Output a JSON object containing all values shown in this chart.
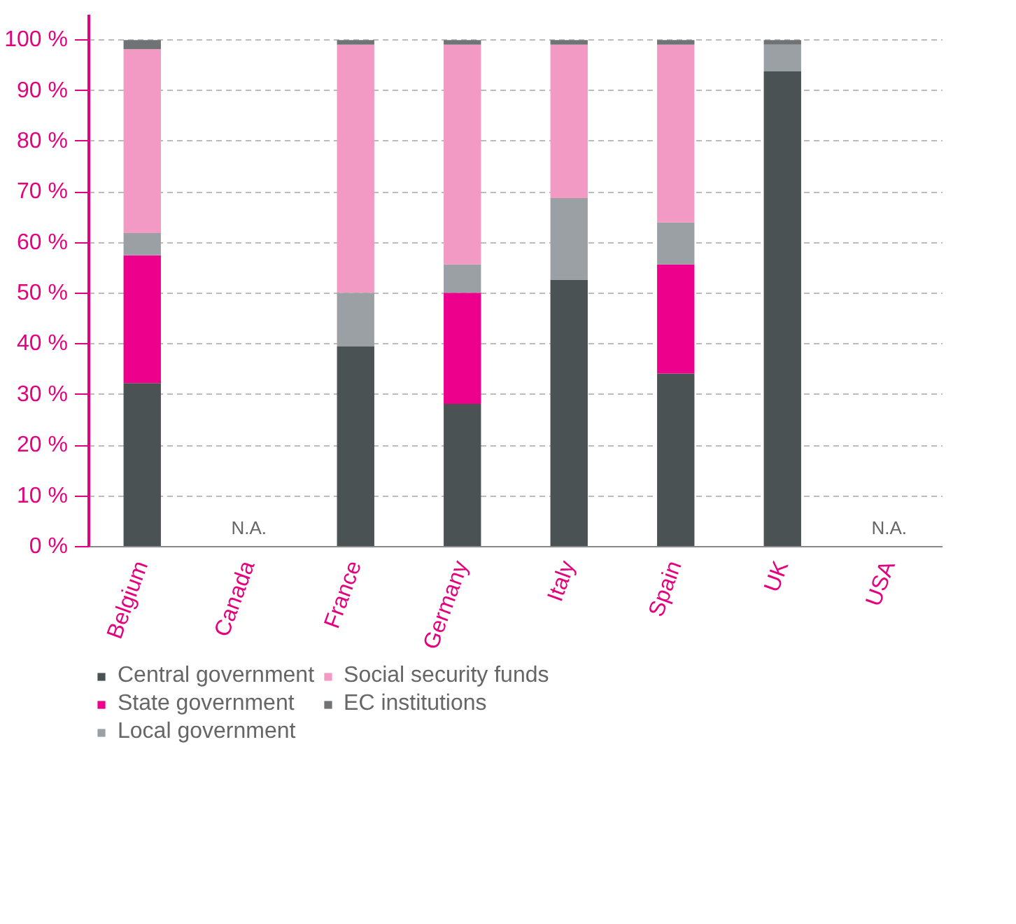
{
  "chart_data": {
    "type": "bar",
    "stacked": true,
    "categories": [
      "Belgium",
      "Canada",
      "France",
      "Germany",
      "Italy",
      "Spain",
      "UK",
      "USA"
    ],
    "series": [
      {
        "name": "Central government",
        "color": "#4a5254",
        "values": [
          32.3,
          null,
          39.5,
          28.2,
          52.7,
          34.2,
          93.8,
          null
        ]
      },
      {
        "name": "State government",
        "color": "#ec008c",
        "values": [
          25.2,
          null,
          null,
          21.9,
          null,
          21.5,
          null,
          null
        ]
      },
      {
        "name": "Local government",
        "color": "#9ba0a5",
        "values": [
          4.4,
          null,
          10.6,
          5.6,
          16.1,
          8.3,
          5.3,
          null
        ]
      },
      {
        "name": "Social security funds",
        "color": "#f29ac3",
        "values": [
          36.3,
          null,
          49.0,
          43.4,
          30.3,
          35.1,
          null,
          null
        ]
      },
      {
        "name": "EC institutions",
        "color": "#707375",
        "values": [
          1.8,
          null,
          0.9,
          0.9,
          0.9,
          0.9,
          0.9,
          null
        ]
      }
    ],
    "ylim": [
      0,
      105
    ],
    "yticks": [
      {
        "value": 0,
        "label": "0 %"
      },
      {
        "value": 10,
        "label": "10 %"
      },
      {
        "value": 20,
        "label": "20 %"
      },
      {
        "value": 30,
        "label": "30 %"
      },
      {
        "value": 40,
        "label": "40 %"
      },
      {
        "value": 50,
        "label": "50 %"
      },
      {
        "value": 60,
        "label": "60 %"
      },
      {
        "value": 70,
        "label": "70 %"
      },
      {
        "value": 80,
        "label": "80 %"
      },
      {
        "value": 90,
        "label": "90 %"
      },
      {
        "value": 100,
        "label": "100 %"
      }
    ],
    "grid": "y",
    "legend": "bottom",
    "annotations": [
      "N.A.",
      "N.A."
    ]
  }
}
